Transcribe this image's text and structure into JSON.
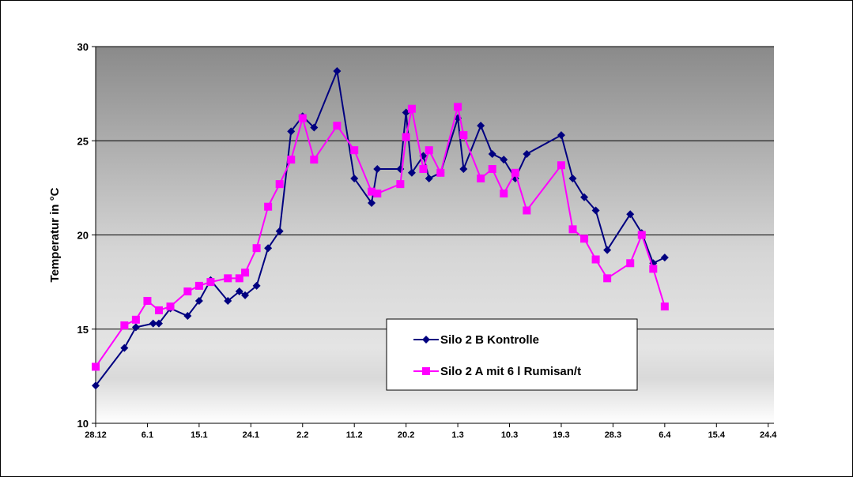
{
  "chart_data": {
    "type": "line",
    "title": "",
    "xlabel": "",
    "ylabel": "Temperatur in °C",
    "ylim": [
      10,
      30
    ],
    "yticks": [
      10,
      15,
      20,
      25,
      30
    ],
    "x_axis": {
      "start": "28.12",
      "end": "25.4",
      "tick_labels": [
        "28.12",
        "6.1",
        "15.1",
        "24.1",
        "2.2",
        "11.2",
        "20.2",
        "1.3",
        "10.3",
        "19.3",
        "28.3",
        "6.4",
        "15.4",
        "24.4"
      ]
    },
    "grid": "horizontal",
    "legend_position": "lower-center",
    "background": "gradient",
    "series": [
      {
        "name": "Silo 2 B Kontrolle",
        "color": "#000080",
        "marker": "diamond",
        "points": [
          [
            "28.12",
            12.0
          ],
          [
            "2.1",
            14.0
          ],
          [
            "4.1",
            15.1
          ],
          [
            "7.1",
            15.3
          ],
          [
            "8.1",
            15.3
          ],
          [
            "10.1",
            16.1
          ],
          [
            "13.1",
            15.7
          ],
          [
            "15.1",
            16.5
          ],
          [
            "17.1",
            17.6
          ],
          [
            "20.1",
            16.5
          ],
          [
            "22.1",
            17.0
          ],
          [
            "23.1",
            16.8
          ],
          [
            "25.1",
            17.3
          ],
          [
            "27.1",
            19.3
          ],
          [
            "29.1",
            20.2
          ],
          [
            "31.1",
            25.5
          ],
          [
            "2.2",
            26.3
          ],
          [
            "4.2",
            25.7
          ],
          [
            "8.2",
            28.7
          ],
          [
            "11.2",
            23.0
          ],
          [
            "14.2",
            21.7
          ],
          [
            "15.2",
            23.5
          ],
          [
            "19.2",
            23.5
          ],
          [
            "20.2",
            26.5
          ],
          [
            "21.2",
            23.3
          ],
          [
            "23.2",
            24.2
          ],
          [
            "24.2",
            23.0
          ],
          [
            "26.2",
            23.3
          ],
          [
            "29.2",
            26.2
          ],
          [
            "2.3",
            23.5
          ],
          [
            "5.3",
            25.8
          ],
          [
            "7.3",
            24.3
          ],
          [
            "9.3",
            24.0
          ],
          [
            "11.3",
            23.0
          ],
          [
            "13.3",
            24.3
          ],
          [
            "19.3",
            25.3
          ],
          [
            "21.3",
            23.0
          ],
          [
            "23.3",
            22.0
          ],
          [
            "25.3",
            21.3
          ],
          [
            "27.3",
            19.2
          ],
          [
            "31.3",
            21.1
          ],
          [
            "2.4",
            20.1
          ],
          [
            "4.4",
            18.5
          ],
          [
            "6.4",
            18.8
          ]
        ]
      },
      {
        "name": "Silo 2 A mit 6 l Rumisan/t",
        "color": "#ff00ff",
        "marker": "square",
        "points": [
          [
            "28.12",
            13.0
          ],
          [
            "2.1",
            15.2
          ],
          [
            "4.1",
            15.5
          ],
          [
            "6.1",
            16.5
          ],
          [
            "8.1",
            16.0
          ],
          [
            "10.1",
            16.2
          ],
          [
            "13.1",
            17.0
          ],
          [
            "15.1",
            17.3
          ],
          [
            "17.1",
            17.5
          ],
          [
            "20.1",
            17.7
          ],
          [
            "22.1",
            17.7
          ],
          [
            "23.1",
            18.0
          ],
          [
            "25.1",
            19.3
          ],
          [
            "27.1",
            21.5
          ],
          [
            "29.1",
            22.7
          ],
          [
            "31.1",
            24.0
          ],
          [
            "2.2",
            26.2
          ],
          [
            "4.2",
            24.0
          ],
          [
            "8.2",
            25.8
          ],
          [
            "11.2",
            24.5
          ],
          [
            "14.2",
            22.3
          ],
          [
            "15.2",
            22.2
          ],
          [
            "19.2",
            22.7
          ],
          [
            "20.2",
            25.2
          ],
          [
            "21.2",
            26.7
          ],
          [
            "23.2",
            23.5
          ],
          [
            "24.2",
            24.5
          ],
          [
            "26.2",
            23.3
          ],
          [
            "29.2",
            26.8
          ],
          [
            "2.3",
            25.3
          ],
          [
            "5.3",
            23.0
          ],
          [
            "7.3",
            23.5
          ],
          [
            "9.3",
            22.2
          ],
          [
            "11.3",
            23.3
          ],
          [
            "13.3",
            21.3
          ],
          [
            "19.3",
            23.7
          ],
          [
            "21.3",
            20.3
          ],
          [
            "23.3",
            19.8
          ],
          [
            "25.3",
            18.7
          ],
          [
            "27.3",
            17.7
          ],
          [
            "31.3",
            18.5
          ],
          [
            "2.4",
            20.0
          ],
          [
            "4.4",
            18.2
          ],
          [
            "6.4",
            16.2
          ]
        ]
      }
    ]
  }
}
